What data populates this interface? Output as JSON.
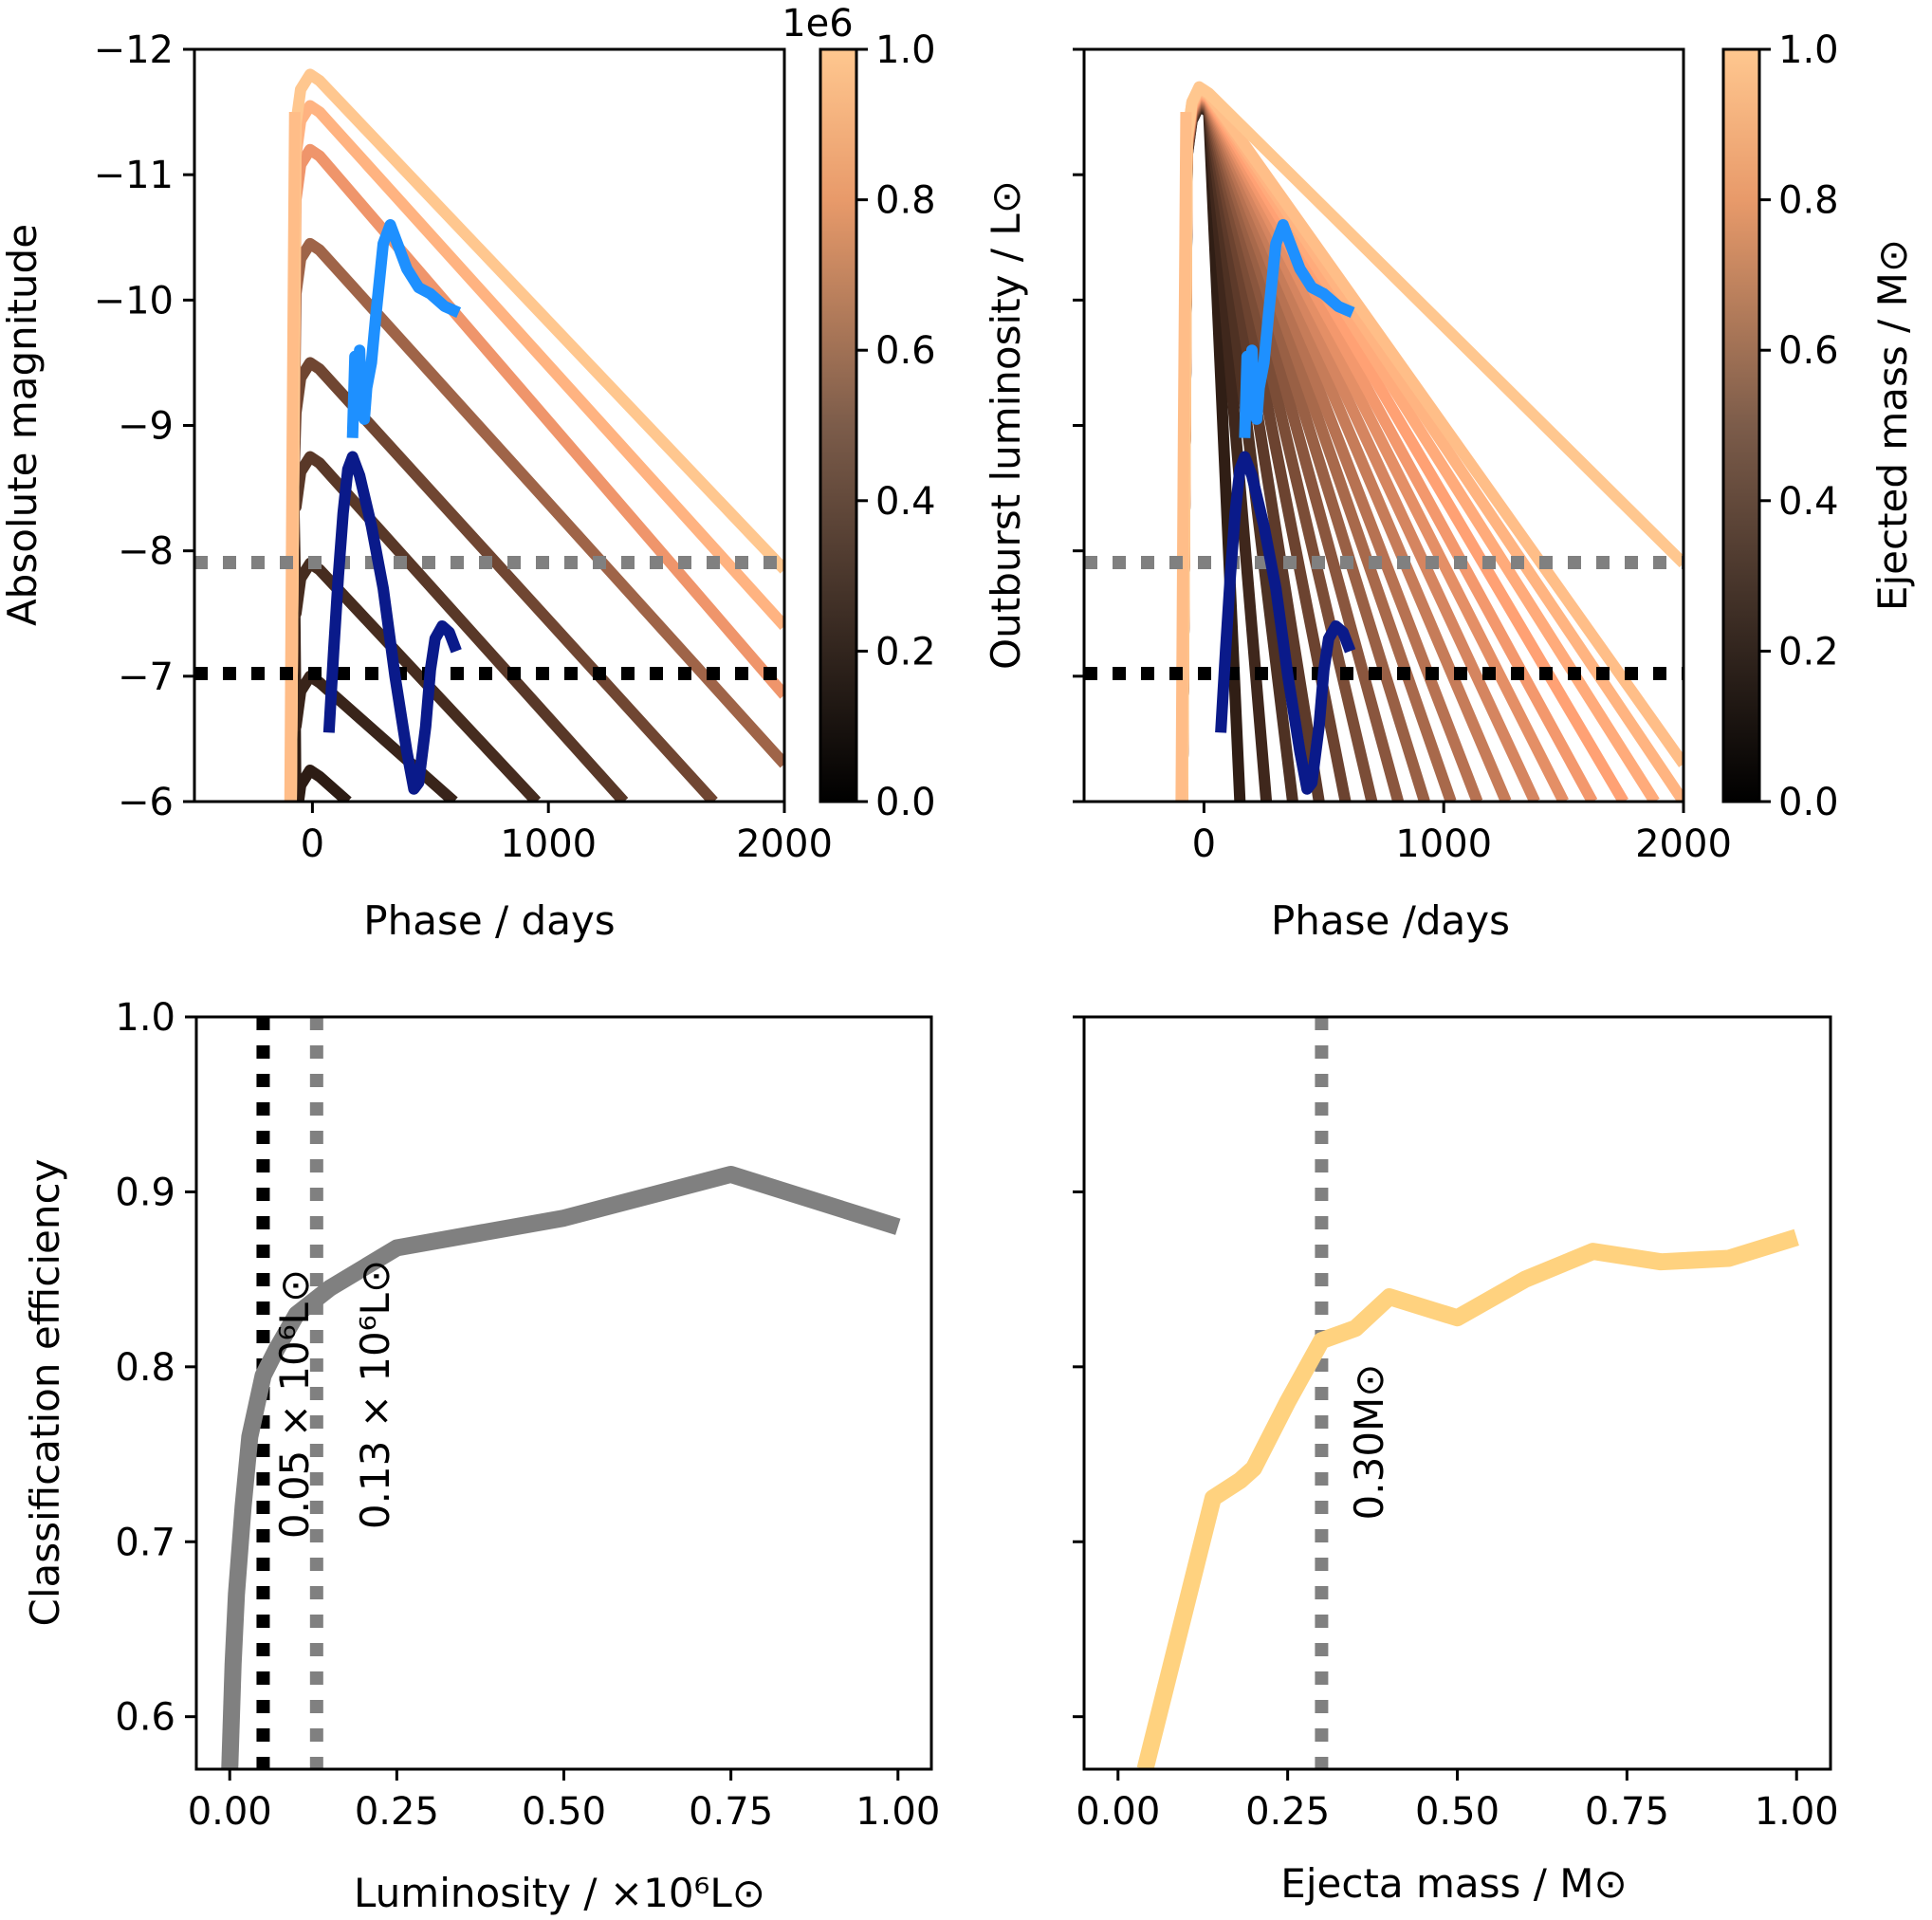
{
  "chart_data": [
    {
      "type": "line",
      "title": "",
      "xlabel": "Phase / days",
      "ylabel": "Absolute magnitude",
      "xlim": [
        -500,
        2000
      ],
      "ylim": [
        -6,
        -12
      ],
      "x_ticks": [
        "0",
        "1000",
        "2000"
      ],
      "x_tick_values": [
        0,
        1000,
        2000
      ],
      "y_ticks": [
        "−12",
        "−11",
        "−10",
        "−9",
        "−8",
        "−7",
        "−6"
      ],
      "y_tick_values": [
        -12,
        -11,
        -10,
        -9,
        -8,
        -7,
        -6
      ],
      "colorbar": {
        "label": "Outburst luminosity / L⊙",
        "offset_label": "1e6",
        "ticks": [
          "0.0",
          "0.2",
          "0.4",
          "0.6",
          "0.8",
          "1.0"
        ],
        "tick_values": [
          0,
          0.2,
          0.4,
          0.6,
          0.8,
          1.0
        ]
      },
      "thresholds": [
        {
          "name": "grey-threshold",
          "y": -7.9,
          "color": "#808080"
        },
        {
          "name": "black-threshold",
          "y": -7.0,
          "color": "#000000"
        }
      ],
      "model_tracks": [
        {
          "param": 1.0,
          "peak_mag": -11.8,
          "x_end": 2000,
          "y_end": -7.85
        },
        {
          "param": 0.9,
          "peak_mag": -11.55,
          "x_end": 2000,
          "y_end": -7.4
        },
        {
          "param": 0.75,
          "peak_mag": -11.2,
          "x_end": 2000,
          "y_end": -6.85
        },
        {
          "param": 0.5,
          "peak_mag": -10.45,
          "x_end": 2000,
          "y_end": -6.3
        },
        {
          "param": 0.35,
          "peak_mag": -9.5,
          "x_end": 1700,
          "y_end": -6.0
        },
        {
          "param": 0.28,
          "peak_mag": -8.75,
          "x_end": 1320,
          "y_end": -6.0
        },
        {
          "param": 0.22,
          "peak_mag": -7.9,
          "x_end": 950,
          "y_end": -6.0
        },
        {
          "param": 0.18,
          "peak_mag": -7.0,
          "x_end": 600,
          "y_end": -6.0
        },
        {
          "param": 0.14,
          "peak_mag": -6.25,
          "x_end": 150,
          "y_end": -6.0
        }
      ],
      "series": [
        {
          "name": "light blue observed",
          "color": "#1e90ff",
          "x": [
            170,
            180,
            190,
            200,
            210,
            220,
            230,
            250,
            270,
            300,
            330,
            350,
            400,
            450,
            500,
            560,
            620
          ],
          "y": [
            -8.9,
            -9.55,
            -9.2,
            -9.6,
            -9.1,
            -9.05,
            -9.3,
            -9.5,
            -9.9,
            -10.45,
            -10.6,
            -10.5,
            -10.25,
            -10.1,
            -10.05,
            -9.95,
            -9.9
          ]
        },
        {
          "name": "dark blue observed",
          "color": "#0a1a8a",
          "x": [
            70,
            90,
            110,
            130,
            150,
            170,
            200,
            250,
            300,
            350,
            400,
            430,
            450,
            480,
            500,
            520,
            550,
            580,
            610
          ],
          "y": [
            -6.55,
            -7.2,
            -7.8,
            -8.3,
            -8.65,
            -8.75,
            -8.6,
            -8.2,
            -7.7,
            -7.0,
            -6.4,
            -6.1,
            -6.15,
            -6.6,
            -7.05,
            -7.3,
            -7.4,
            -7.35,
            -7.2
          ]
        }
      ]
    },
    {
      "type": "line",
      "title": "",
      "xlabel": "Phase /days",
      "ylabel": "",
      "xlim": [
        -500,
        2000
      ],
      "ylim": [
        -6,
        -12
      ],
      "x_ticks": [
        "0",
        "1000",
        "2000"
      ],
      "x_tick_values": [
        0,
        1000,
        2000
      ],
      "colorbar": {
        "label": "Ejected mass / M⊙",
        "ticks": [
          "0.0",
          "0.2",
          "0.4",
          "0.6",
          "0.8",
          "1.0"
        ],
        "tick_values": [
          0,
          0.2,
          0.4,
          0.6,
          0.8,
          1.0
        ]
      },
      "thresholds": [
        {
          "name": "grey-threshold",
          "y": -7.9,
          "color": "#808080"
        },
        {
          "name": "black-threshold",
          "y": -7.0,
          "color": "#000000"
        }
      ],
      "model_tracks_end_x": [
        150,
        260,
        370,
        480,
        590,
        700,
        810,
        920,
        1030,
        1140,
        1260,
        1380,
        1500,
        1620,
        1750,
        1880,
        2000,
        2000,
        2000
      ],
      "model_tracks_end_y": [
        -6.0,
        -6.0,
        -6.0,
        -6.0,
        -6.0,
        -6.0,
        -6.0,
        -6.0,
        -6.0,
        -6.0,
        -6.0,
        -6.0,
        -6.0,
        -6.0,
        -6.0,
        -6.0,
        -6.0,
        -6.3,
        -7.9
      ],
      "series": [
        {
          "name": "light blue observed",
          "color": "#1e90ff",
          "x": [
            170,
            180,
            190,
            200,
            210,
            220,
            230,
            250,
            270,
            300,
            330,
            350,
            400,
            450,
            500,
            560,
            620
          ],
          "y": [
            -8.9,
            -9.55,
            -9.2,
            -9.6,
            -9.1,
            -9.05,
            -9.3,
            -9.5,
            -9.9,
            -10.45,
            -10.6,
            -10.5,
            -10.25,
            -10.1,
            -10.05,
            -9.95,
            -9.9
          ]
        },
        {
          "name": "dark blue observed",
          "color": "#0a1a8a",
          "x": [
            70,
            90,
            110,
            130,
            150,
            170,
            200,
            250,
            300,
            350,
            400,
            430,
            450,
            480,
            500,
            520,
            550,
            580,
            610
          ],
          "y": [
            -6.55,
            -7.2,
            -7.8,
            -8.3,
            -8.65,
            -8.75,
            -8.6,
            -8.2,
            -7.7,
            -7.0,
            -6.4,
            -6.1,
            -6.15,
            -6.6,
            -7.05,
            -7.3,
            -7.4,
            -7.35,
            -7.2
          ]
        }
      ]
    },
    {
      "type": "line",
      "title": "",
      "xlabel": "Luminosity / ×10⁶L⊙",
      "ylabel": "Classification efficiency",
      "xlim": [
        -0.05,
        1.05
      ],
      "ylim": [
        0.57,
        1.0
      ],
      "x_ticks": [
        "0.00",
        "0.25",
        "0.50",
        "0.75",
        "1.00"
      ],
      "x_tick_values": [
        0,
        0.25,
        0.5,
        0.75,
        1.0
      ],
      "y_ticks": [
        "0.6",
        "0.7",
        "0.8",
        "0.9",
        "1.0"
      ],
      "y_tick_values": [
        0.6,
        0.7,
        0.8,
        0.9,
        1.0
      ],
      "vlines": [
        {
          "x": 0.05,
          "color": "#000000",
          "label": "0.05 × 10⁶L⊙"
        },
        {
          "x": 0.13,
          "color": "#808080",
          "label": "0.13 × 10⁶L⊙"
        }
      ],
      "series": [
        {
          "name": "efficiency",
          "color": "#808080",
          "x": [
            0.0,
            0.005,
            0.01,
            0.02,
            0.03,
            0.05,
            0.07,
            0.1,
            0.15,
            0.25,
            0.5,
            0.75,
            1.0
          ],
          "y": [
            0.57,
            0.63,
            0.67,
            0.72,
            0.76,
            0.795,
            0.81,
            0.83,
            0.845,
            0.868,
            0.885,
            0.91,
            0.88
          ]
        }
      ]
    },
    {
      "type": "line",
      "title": "",
      "xlabel": "Ejecta mass / M⊙",
      "ylabel": "",
      "xlim": [
        -0.05,
        1.05
      ],
      "ylim": [
        0.57,
        1.0
      ],
      "x_ticks": [
        "0.00",
        "0.25",
        "0.50",
        "0.75",
        "1.00"
      ],
      "x_tick_values": [
        0,
        0.25,
        0.5,
        0.75,
        1.0
      ],
      "vlines": [
        {
          "x": 0.3,
          "color": "#808080",
          "label": "0.30M⊙"
        }
      ],
      "series": [
        {
          "name": "efficiency",
          "color": "#ffd27f",
          "x": [
            0.04,
            0.14,
            0.18,
            0.2,
            0.25,
            0.3,
            0.35,
            0.4,
            0.5,
            0.6,
            0.7,
            0.8,
            0.9,
            1.0
          ],
          "y": [
            0.57,
            0.725,
            0.735,
            0.742,
            0.78,
            0.815,
            0.822,
            0.84,
            0.828,
            0.85,
            0.866,
            0.86,
            0.862,
            0.874
          ]
        }
      ]
    }
  ]
}
